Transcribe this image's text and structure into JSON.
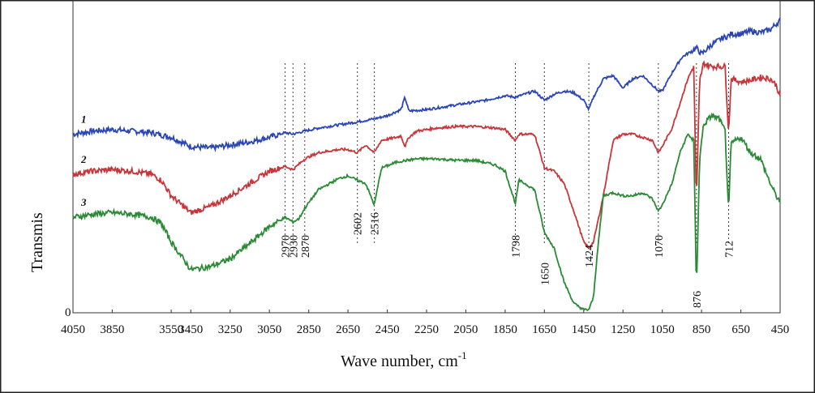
{
  "chart_data": {
    "type": "line",
    "xlabel": "Wave number, cm",
    "xlabel_superscript": "-1",
    "ylabel": "Transmis",
    "xlim": [
      4050,
      450
    ],
    "x_ticks": [
      4050,
      3850,
      3550,
      3450,
      3250,
      3050,
      2850,
      2650,
      2450,
      2250,
      2050,
      1850,
      1650,
      1450,
      1250,
      1050,
      850,
      650,
      450
    ],
    "y_tick_label": "0",
    "grid": false,
    "series": [
      {
        "name": "1",
        "color": "#2a45b8",
        "x": [
          4050,
          3950,
          3850,
          3750,
          3650,
          3550,
          3450,
          3350,
          3250,
          3150,
          3050,
          2970,
          2930,
          2870,
          2800,
          2700,
          2602,
          2516,
          2450,
          2380,
          2360,
          2340,
          2250,
          2150,
          2050,
          1950,
          1850,
          1798,
          1750,
          1700,
          1650,
          1600,
          1550,
          1500,
          1470,
          1450,
          1424,
          1400,
          1350,
          1300,
          1250,
          1200,
          1150,
          1100,
          1070,
          1050,
          1000,
          950,
          900,
          876,
          850,
          800,
          750,
          712,
          700,
          650,
          600,
          550,
          500,
          450
        ],
        "y": [
          0.58,
          0.59,
          0.595,
          0.59,
          0.585,
          0.57,
          0.54,
          0.535,
          0.545,
          0.555,
          0.57,
          0.585,
          0.58,
          0.59,
          0.6,
          0.61,
          0.62,
          0.63,
          0.64,
          0.66,
          0.7,
          0.655,
          0.66,
          0.67,
          0.68,
          0.69,
          0.705,
          0.7,
          0.71,
          0.72,
          0.69,
          0.71,
          0.72,
          0.715,
          0.7,
          0.69,
          0.66,
          0.7,
          0.76,
          0.77,
          0.73,
          0.76,
          0.77,
          0.74,
          0.72,
          0.72,
          0.78,
          0.83,
          0.85,
          0.86,
          0.84,
          0.87,
          0.89,
          0.9,
          0.905,
          0.905,
          0.915,
          0.91,
          0.92,
          0.95
        ]
      },
      {
        "name": "2",
        "color": "#c8353a",
        "x": [
          4050,
          3950,
          3850,
          3750,
          3650,
          3600,
          3550,
          3450,
          3350,
          3250,
          3150,
          3050,
          2970,
          2930,
          2870,
          2800,
          2700,
          2650,
          2602,
          2560,
          2516,
          2480,
          2400,
          2380,
          2360,
          2340,
          2300,
          2200,
          2100,
          2000,
          1900,
          1850,
          1798,
          1780,
          1750,
          1700,
          1650,
          1600,
          1550,
          1500,
          1450,
          1424,
          1400,
          1380,
          1350,
          1300,
          1250,
          1200,
          1150,
          1100,
          1070,
          1050,
          1000,
          960,
          920,
          890,
          876,
          860,
          840,
          800,
          760,
          730,
          712,
          700,
          650,
          600,
          550,
          500,
          470,
          450
        ],
        "y": [
          0.45,
          0.46,
          0.465,
          0.46,
          0.45,
          0.43,
          0.38,
          0.325,
          0.345,
          0.38,
          0.42,
          0.46,
          0.475,
          0.465,
          0.5,
          0.52,
          0.53,
          0.53,
          0.52,
          0.545,
          0.52,
          0.56,
          0.57,
          0.575,
          0.54,
          0.57,
          0.59,
          0.6,
          0.605,
          0.605,
          0.6,
          0.595,
          0.56,
          0.58,
          0.58,
          0.58,
          0.47,
          0.46,
          0.42,
          0.33,
          0.23,
          0.21,
          0.23,
          0.29,
          0.38,
          0.56,
          0.58,
          0.58,
          0.57,
          0.56,
          0.52,
          0.54,
          0.6,
          0.68,
          0.76,
          0.8,
          0.36,
          0.75,
          0.81,
          0.8,
          0.8,
          0.8,
          0.58,
          0.76,
          0.75,
          0.755,
          0.765,
          0.76,
          0.74,
          0.7
        ]
      },
      {
        "name": "3",
        "color": "#2a8a35",
        "x": [
          4050,
          3950,
          3850,
          3750,
          3650,
          3600,
          3550,
          3450,
          3350,
          3250,
          3150,
          3050,
          2970,
          2930,
          2900,
          2870,
          2800,
          2700,
          2650,
          2602,
          2560,
          2516,
          2480,
          2400,
          2300,
          2200,
          2100,
          2000,
          1900,
          1850,
          1798,
          1780,
          1750,
          1700,
          1650,
          1600,
          1550,
          1500,
          1450,
          1424,
          1400,
          1380,
          1350,
          1300,
          1250,
          1200,
          1150,
          1100,
          1070,
          1050,
          1000,
          960,
          920,
          890,
          876,
          860,
          840,
          800,
          760,
          730,
          712,
          700,
          650,
          600,
          550,
          500,
          470,
          450
        ],
        "y": [
          0.31,
          0.32,
          0.325,
          0.32,
          0.31,
          0.29,
          0.23,
          0.14,
          0.15,
          0.175,
          0.225,
          0.28,
          0.31,
          0.295,
          0.305,
          0.34,
          0.4,
          0.435,
          0.445,
          0.43,
          0.42,
          0.35,
          0.47,
          0.49,
          0.5,
          0.5,
          0.495,
          0.495,
          0.48,
          0.46,
          0.355,
          0.43,
          0.42,
          0.4,
          0.26,
          0.21,
          0.1,
          0.03,
          0.01,
          0.01,
          0.05,
          0.2,
          0.38,
          0.39,
          0.38,
          0.38,
          0.39,
          0.37,
          0.33,
          0.35,
          0.42,
          0.52,
          0.58,
          0.56,
          0.07,
          0.5,
          0.61,
          0.64,
          0.63,
          0.59,
          0.32,
          0.55,
          0.57,
          0.52,
          0.5,
          0.42,
          0.38,
          0.36
        ]
      }
    ],
    "series_labels": [
      "1",
      "2",
      "3"
    ],
    "peak_lines": [
      2970,
      2930,
      2870,
      2602,
      2516,
      1798,
      1650,
      1424,
      1070,
      876,
      712
    ],
    "peak_labels": [
      {
        "text": "2970",
        "x": 2970
      },
      {
        "text": "2930",
        "x": 2930
      },
      {
        "text": "2870",
        "x": 2870
      },
      {
        "text": "2602",
        "x": 2602
      },
      {
        "text": "2516",
        "x": 2516
      },
      {
        "text": "1798",
        "x": 1798
      },
      {
        "text": "1650",
        "x": 1650
      },
      {
        "text": "1424",
        "x": 1424
      },
      {
        "text": "1070",
        "x": 1070
      },
      {
        "text": "876",
        "x": 876
      },
      {
        "text": "712",
        "x": 712
      }
    ]
  }
}
